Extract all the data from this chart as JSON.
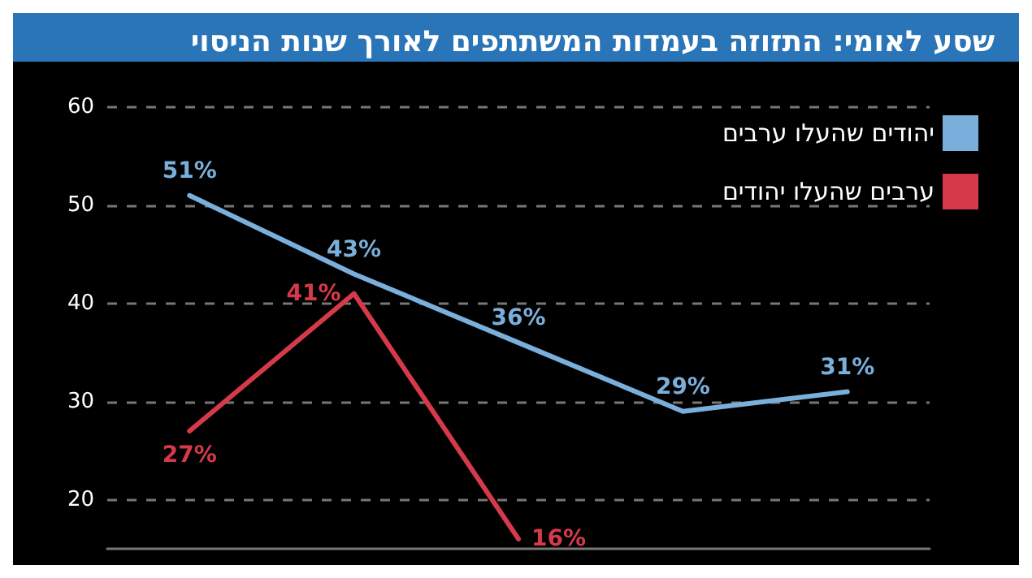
{
  "chart_data": {
    "type": "line",
    "title": "שסע לאומי: התזוזה בעמדות המשתתפים לאורך שנות הניסוי",
    "categories": [
      null,
      null,
      null,
      null,
      null
    ],
    "series": [
      {
        "name": "יהודים שהעלו ערבים",
        "color": "#7aafdc",
        "values": [
          51,
          43,
          36,
          29,
          31
        ],
        "value_labels": [
          "51%",
          "43%",
          "36%",
          "29%",
          "31%"
        ]
      },
      {
        "name": "ערבים שהעלו יהודים",
        "color": "#d63a4a",
        "values": [
          27,
          41,
          16,
          null,
          null
        ],
        "value_labels": [
          "27%",
          "41%",
          "16%",
          null,
          null
        ]
      }
    ],
    "ylim": [
      15,
      60
    ],
    "yticks": [
      20,
      30,
      40,
      50,
      60
    ],
    "grid": "y",
    "legend": "top right",
    "marker": "none",
    "line_style": "solid",
    "tick_labels": "y"
  }
}
